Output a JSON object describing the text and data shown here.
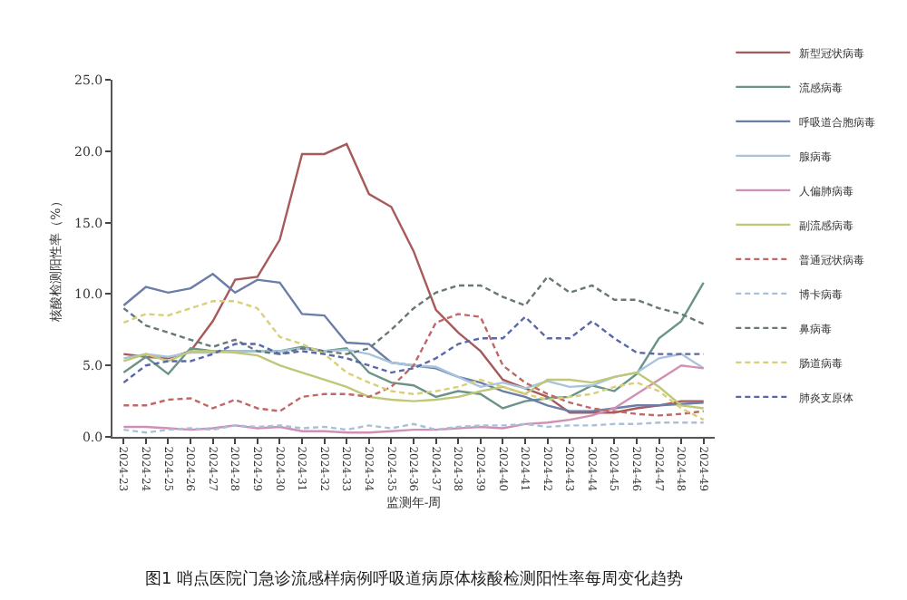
{
  "chart_data": {
    "type": "line",
    "xlabel": "监测年-周",
    "ylabel": "核酸检测阳性率（%）",
    "categories": [
      "2024-23",
      "2024-24",
      "2024-25",
      "2024-26",
      "2024-27",
      "2024-28",
      "2024-29",
      "2024-30",
      "2024-31",
      "2024-32",
      "2024-33",
      "2024-34",
      "2024-35",
      "2024-36",
      "2024-37",
      "2024-38",
      "2024-39",
      "2024-40",
      "2024-41",
      "2024-42",
      "2024-43",
      "2024-44",
      "2024-45",
      "2024-46",
      "2024-47",
      "2024-48",
      "2024-49"
    ],
    "ylim": [
      0,
      25
    ],
    "yticks": [
      {
        "value": 0,
        "label": "0.0"
      },
      {
        "value": 5,
        "label": "5.0"
      },
      {
        "value": 10,
        "label": "10.0"
      },
      {
        "value": 15,
        "label": "15.0"
      },
      {
        "value": 20,
        "label": "20.0"
      },
      {
        "value": 25,
        "label": "25.0"
      }
    ],
    "grid": false,
    "legend": "right",
    "marker": "none",
    "series": [
      {
        "name": "新型冠状病毒",
        "color": "#a85a5a",
        "line_style": "solid",
        "values": [
          5.8,
          5.6,
          5.5,
          6.0,
          8.1,
          11.0,
          11.2,
          13.8,
          19.8,
          19.8,
          20.5,
          17.0,
          16.1,
          13.0,
          8.9,
          7.3,
          6.0,
          4.0,
          3.4,
          2.8,
          1.7,
          1.7,
          1.7,
          2.0,
          2.2,
          2.5,
          2.5
        ]
      },
      {
        "name": "流感病毒",
        "color": "#6a9488",
        "line_style": "solid",
        "values": [
          4.5,
          5.6,
          4.4,
          6.2,
          6.0,
          6.0,
          6.0,
          6.0,
          6.3,
          6.0,
          6.2,
          4.5,
          3.8,
          3.6,
          2.8,
          3.2,
          3.0,
          2.0,
          2.5,
          2.7,
          2.8,
          3.6,
          3.2,
          4.4,
          6.9,
          8.1,
          10.8
        ]
      },
      {
        "name": "呼吸道合胞病毒",
        "color": "#6a7ea8",
        "line_style": "solid",
        "values": [
          9.2,
          10.5,
          10.1,
          10.4,
          11.4,
          10.1,
          11.0,
          10.8,
          8.6,
          8.5,
          6.6,
          6.5,
          5.2,
          5.0,
          4.8,
          4.2,
          3.8,
          3.2,
          2.8,
          2.2,
          1.8,
          1.8,
          2.0,
          2.2,
          2.2,
          2.3,
          2.4
        ]
      },
      {
        "name": "腺病毒",
        "color": "#a8c4dc",
        "line_style": "solid",
        "values": [
          5.5,
          5.8,
          5.6,
          5.9,
          5.9,
          6.0,
          6.0,
          6.0,
          6.2,
          6.0,
          6.1,
          5.8,
          5.2,
          5.0,
          4.9,
          4.2,
          3.5,
          3.8,
          3.4,
          3.9,
          3.5,
          3.6,
          4.2,
          4.5,
          5.5,
          5.8,
          4.8
        ]
      },
      {
        "name": "人偏肺病毒",
        "color": "#d090b4",
        "line_style": "solid",
        "values": [
          0.7,
          0.7,
          0.6,
          0.5,
          0.6,
          0.8,
          0.6,
          0.7,
          0.4,
          0.4,
          0.3,
          0.3,
          0.4,
          0.5,
          0.5,
          0.6,
          0.7,
          0.6,
          0.9,
          1.0,
          1.2,
          1.5,
          2.0,
          3.0,
          4.0,
          5.0,
          4.8
        ]
      },
      {
        "name": "副流感病毒",
        "color": "#c0c878",
        "line_style": "solid",
        "values": [
          5.3,
          5.8,
          5.3,
          6.0,
          6.0,
          5.9,
          5.7,
          5.0,
          4.5,
          4.0,
          3.5,
          2.8,
          2.6,
          2.5,
          2.6,
          2.8,
          3.2,
          3.5,
          3.0,
          4.0,
          4.0,
          3.8,
          4.2,
          4.5,
          3.5,
          2.2,
          2.0
        ]
      },
      {
        "name": "普通冠状病毒",
        "color": "#c06868",
        "line_style": "dashed",
        "values": [
          2.2,
          2.2,
          2.6,
          2.7,
          2.0,
          2.6,
          2.0,
          1.8,
          2.8,
          3.0,
          3.0,
          2.8,
          3.5,
          5.0,
          8.0,
          8.6,
          8.4,
          5.0,
          3.8,
          3.0,
          2.4,
          2.0,
          1.8,
          1.6,
          1.5,
          1.6,
          1.8
        ]
      },
      {
        "name": "博卡病毒",
        "color": "#a8c0d8",
        "line_style": "dashed",
        "values": [
          0.5,
          0.3,
          0.5,
          0.6,
          0.5,
          0.8,
          0.7,
          0.8,
          0.6,
          0.7,
          0.5,
          0.8,
          0.6,
          0.9,
          0.5,
          0.7,
          0.8,
          0.8,
          0.9,
          0.7,
          0.8,
          0.8,
          0.9,
          0.9,
          1.0,
          1.0,
          1.0
        ]
      },
      {
        "name": "鼻病毒",
        "color": "#687878",
        "line_style": "dashed",
        "values": [
          9.0,
          7.8,
          7.3,
          6.8,
          6.3,
          6.8,
          6.0,
          5.8,
          6.2,
          6.0,
          5.8,
          6.2,
          7.5,
          9.0,
          10.1,
          10.6,
          10.6,
          9.8,
          9.2,
          11.2,
          10.1,
          10.6,
          9.6,
          9.6,
          9.0,
          8.6,
          7.9
        ]
      },
      {
        "name": "肠道病毒",
        "color": "#d8d078",
        "line_style": "dashed",
        "values": [
          8.0,
          8.6,
          8.5,
          9.0,
          9.5,
          9.5,
          9.0,
          7.0,
          6.5,
          5.8,
          4.5,
          3.8,
          3.2,
          3.0,
          3.2,
          3.5,
          4.0,
          3.5,
          3.0,
          2.6,
          2.8,
          3.0,
          3.5,
          3.8,
          3.2,
          2.0,
          1.2
        ]
      },
      {
        "name": "肺炎支原体",
        "color": "#5a68a8",
        "line_style": "dashed",
        "values": [
          3.8,
          5.0,
          5.3,
          5.3,
          5.8,
          6.5,
          6.5,
          5.8,
          6.0,
          5.8,
          5.5,
          5.0,
          4.5,
          4.8,
          5.5,
          6.5,
          6.9,
          6.9,
          8.4,
          6.9,
          6.9,
          8.1,
          6.9,
          5.9,
          5.8,
          5.8,
          5.8
        ]
      }
    ],
    "annotations": [
      "图1 哨点医院门急诊流感样病例呼吸道病原体核酸检测阳性率每周变化趋势"
    ]
  }
}
